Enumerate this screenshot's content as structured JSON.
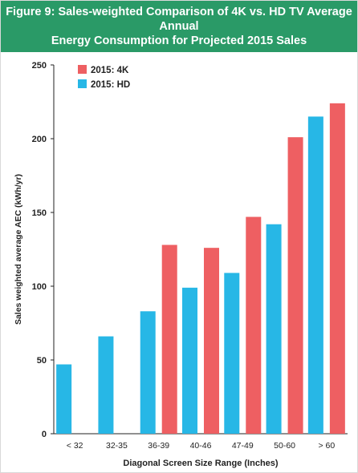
{
  "chart_data": {
    "type": "bar",
    "title_line1": "Figure 9: Sales-weighted Comparison of 4K vs. HD TV Average Annual",
    "title_line2": "Energy Consumption for Projected 2015 Sales",
    "xlabel": "Diagonal Screen Size Range (Inches)",
    "ylabel": "Sales weighted average AEC (kWh/yr)",
    "ylim": [
      0,
      250
    ],
    "yticks": [
      0,
      50,
      100,
      150,
      200,
      250
    ],
    "grid": false,
    "legend_position": "top-left",
    "categories": [
      "< 32",
      "32-35",
      "36-39",
      "40-46",
      "47-49",
      "50-60",
      "> 60"
    ],
    "series": [
      {
        "name": "2015: HD",
        "color": "#27b7e6",
        "values": [
          47,
          66,
          83,
          99,
          109,
          142,
          215
        ]
      },
      {
        "name": "2015: 4K",
        "color": "#ee5f62",
        "values": [
          null,
          null,
          128,
          126,
          147,
          201,
          224
        ]
      }
    ],
    "title_color": "#2a9a67"
  }
}
